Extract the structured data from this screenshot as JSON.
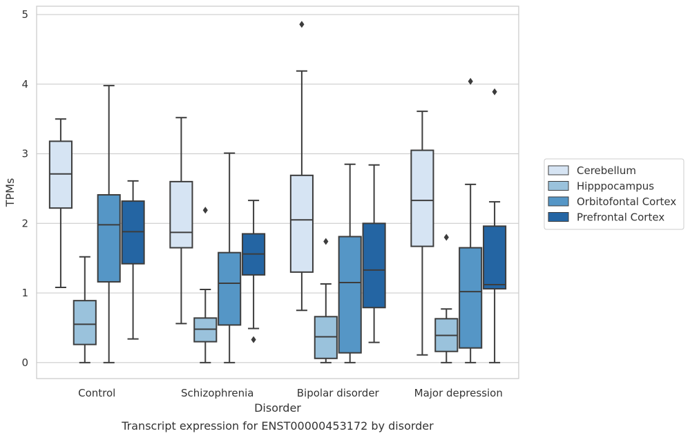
{
  "chart_data": {
    "type": "box",
    "title": "",
    "caption": "Transcript expression for ENST00000453172 by disorder",
    "xlabel": "Disorder",
    "ylabel": "TPMs",
    "ylim": [
      -0.23,
      5.12
    ],
    "yticks": [
      0,
      1,
      2,
      3,
      4,
      5
    ],
    "categories": [
      "Control",
      "Schizophrenia",
      "Bipolar disorder",
      "Major depression"
    ],
    "grid": "horizontal",
    "legend_position": "right",
    "series": [
      {
        "name": "Cerebellum",
        "color": "#d6e4f3",
        "boxes": [
          {
            "whislo": 1.08,
            "q1": 2.22,
            "med": 2.71,
            "q3": 3.18,
            "whishi": 3.5,
            "fliers": []
          },
          {
            "whislo": 0.56,
            "q1": 1.65,
            "med": 1.87,
            "q3": 2.6,
            "whishi": 3.52,
            "fliers": []
          },
          {
            "whislo": 0.75,
            "q1": 1.3,
            "med": 2.05,
            "q3": 2.69,
            "whishi": 4.19,
            "fliers": [
              4.86
            ]
          },
          {
            "whislo": 0.11,
            "q1": 1.67,
            "med": 2.33,
            "q3": 3.05,
            "whishi": 3.61,
            "fliers": []
          }
        ]
      },
      {
        "name": "Hipppocampus",
        "color": "#9ac2dc",
        "boxes": [
          {
            "whislo": 0.0,
            "q1": 0.26,
            "med": 0.55,
            "q3": 0.89,
            "whishi": 1.52,
            "fliers": []
          },
          {
            "whislo": 0.0,
            "q1": 0.3,
            "med": 0.48,
            "q3": 0.64,
            "whishi": 1.05,
            "fliers": [
              2.19
            ]
          },
          {
            "whislo": 0.0,
            "q1": 0.06,
            "med": 0.37,
            "q3": 0.66,
            "whishi": 1.13,
            "fliers": [
              1.74
            ]
          },
          {
            "whislo": 0.0,
            "q1": 0.16,
            "med": 0.39,
            "q3": 0.63,
            "whishi": 0.77,
            "fliers": [
              1.8
            ]
          }
        ]
      },
      {
        "name": "Orbitofontal Cortex",
        "color": "#5596c6",
        "boxes": [
          {
            "whislo": 0.0,
            "q1": 1.16,
            "med": 1.98,
            "q3": 2.41,
            "whishi": 3.98,
            "fliers": []
          },
          {
            "whislo": 0.0,
            "q1": 0.54,
            "med": 1.14,
            "q3": 1.58,
            "whishi": 3.01,
            "fliers": []
          },
          {
            "whislo": 0.0,
            "q1": 0.14,
            "med": 1.15,
            "q3": 1.81,
            "whishi": 2.85,
            "fliers": []
          },
          {
            "whislo": 0.0,
            "q1": 0.21,
            "med": 1.02,
            "q3": 1.65,
            "whishi": 2.56,
            "fliers": [
              4.04
            ]
          }
        ]
      },
      {
        "name": "Prefrontal Cortex",
        "color": "#2465a3",
        "boxes": [
          {
            "whislo": 0.34,
            "q1": 1.42,
            "med": 1.88,
            "q3": 2.32,
            "whishi": 2.61,
            "fliers": []
          },
          {
            "whislo": 0.49,
            "q1": 1.26,
            "med": 1.56,
            "q3": 1.85,
            "whishi": 2.33,
            "fliers": [
              0.33
            ]
          },
          {
            "whislo": 0.29,
            "q1": 0.79,
            "med": 1.33,
            "q3": 2.0,
            "whishi": 2.84,
            "fliers": []
          },
          {
            "whislo": 0.0,
            "q1": 1.06,
            "med": 1.12,
            "q3": 1.96,
            "whishi": 2.31,
            "fliers": [
              3.89
            ]
          }
        ]
      }
    ]
  }
}
